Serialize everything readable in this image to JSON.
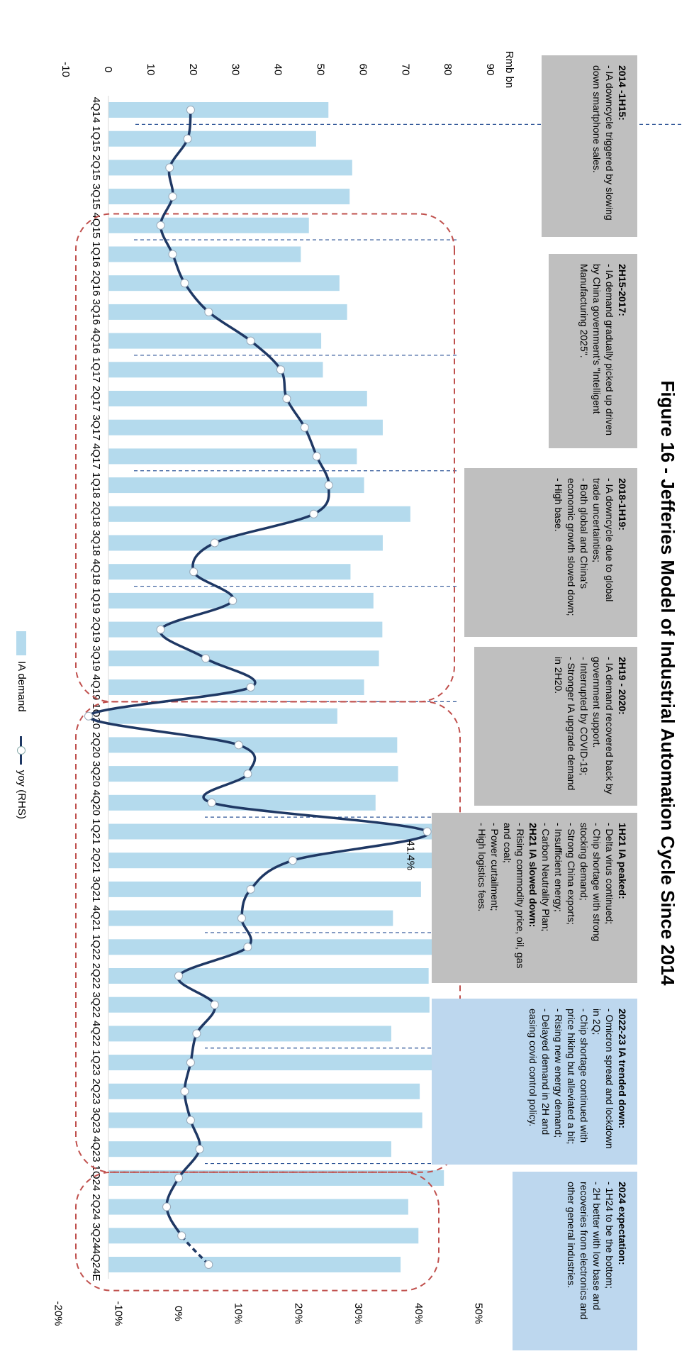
{
  "title": "Figure 16 - Jefferies Model of Industrial Automation Cycle Since 2014",
  "chart_data": {
    "type": "bar",
    "categories": [
      "4Q14",
      "1Q15",
      "2Q15",
      "3Q15",
      "4Q15",
      "1Q16",
      "2Q16",
      "3Q16",
      "4Q16",
      "1Q17",
      "2Q17",
      "3Q17",
      "4Q17",
      "1Q18",
      "2Q18",
      "3Q18",
      "4Q18",
      "1Q19",
      "2Q19",
      "3Q19",
      "4Q19",
      "1Q20",
      "2Q20",
      "3Q20",
      "4Q20",
      "1Q21",
      "2Q21",
      "3Q21",
      "4Q21",
      "1Q22",
      "2Q22",
      "3Q22",
      "4Q22",
      "1Q23",
      "2Q23",
      "3Q23",
      "4Q23",
      "1Q24",
      "2Q24",
      "3Q24",
      "4Q24E"
    ],
    "series": [
      {
        "name": "IA demand",
        "axis": "left",
        "values": [
          51.8,
          48.9,
          57.4,
          56.8,
          47.2,
          45.3,
          54.4,
          56.2,
          50.1,
          50.5,
          60.9,
          64.6,
          58.5,
          60.2,
          71.1,
          64.6,
          57.0,
          62.4,
          64.5,
          63.7,
          60.2,
          53.9,
          68.0,
          68.2,
          62.9,
          79.0,
          79.5,
          73.6,
          67.0,
          82.0,
          75.4,
          75.6,
          66.6,
          80.4,
          73.3,
          73.9,
          66.6,
          79.0,
          70.6,
          73.0,
          68.8
        ]
      },
      {
        "name": "yoy (RHS)",
        "axis": "right",
        "dashed_from": "3Q24",
        "values": [
          2.0,
          1.5,
          -1.5,
          -1.0,
          -3.0,
          -1.0,
          1.0,
          5.0,
          12.0,
          17.0,
          18.0,
          21.0,
          23.0,
          25.0,
          22.5,
          6.0,
          2.5,
          9.0,
          -3.0,
          4.5,
          12.0,
          -15.0,
          10.0,
          11.5,
          5.5,
          41.4,
          19.0,
          12.0,
          10.5,
          11.5,
          0.0,
          6.0,
          3.0,
          2.0,
          1.0,
          2.0,
          3.5,
          0.0,
          -2.0,
          0.5,
          5.0
        ]
      }
    ],
    "y_left": {
      "label": "Rmb bn",
      "ylim": [
        -10,
        90
      ],
      "ticks": [
        "-10",
        "0",
        "10",
        "20",
        "30",
        "40",
        "50",
        "60",
        "70",
        "80",
        "90"
      ]
    },
    "y_right": {
      "ylim": [
        -20,
        50
      ],
      "ticks": [
        "-20%",
        "-10%",
        "0%",
        "10%",
        "20%",
        "30%",
        "40%",
        "50%"
      ]
    },
    "annotations": [
      {
        "category": "1Q21",
        "label": "41.4%"
      }
    ],
    "legend": [
      "IA demand",
      "yoy (RHS)"
    ],
    "legend_position": "bottom",
    "grid": false
  },
  "colors": {
    "bar": "#b4daed",
    "line": "#1f3864",
    "cycle_border": "#c0504d",
    "divider": "#2f5597",
    "gray_box": "#bfbfbf",
    "blue_box": "#bdd7ee"
  },
  "boxes": [
    {
      "heading": "2014 -1H15:",
      "lines": [
        "- IA downcycle triggered by slowing down smartphone sales."
      ]
    },
    {
      "heading": "2H15-2017:",
      "lines": [
        "- IA demand gradually picked up driven by China government's \"Intelligent Manufacturing 2025\"."
      ]
    },
    {
      "heading": "2018-1H19:",
      "lines": [
        "- IA downcycle due to global trade uncertainties;",
        "- Both global and China's economic growth slowed down;",
        "- High base."
      ]
    },
    {
      "heading": "2H19 - 2020:",
      "lines": [
        "- IA demand recovered back by government support.",
        "- Interrupted by COVID-19;",
        "- Stronger IA upgrade demand in 2H20."
      ]
    },
    {
      "heading": "1H21 IA peaked:",
      "lines": [
        "- Delta virus continued;",
        "- Chip shortage with strong stocking demand;",
        "- Strong China exports;",
        "- Insufficient energy;",
        "- Carbon Neutrality Plan;",
        "2H21 IA slowed down:",
        "- Rising commodity price, oil, gas and coal;",
        "- Power curtailment;",
        "- High logistics fees."
      ]
    },
    {
      "heading": "2022-23 IA trended down:",
      "lines": [
        "- Omicron spread and lockdown in 2Q;",
        "- Chip shortage continued with price hiking but alleviated a bit;",
        "- Rising new energy demand;",
        "- Delayed demand in 2H and easing covid control policy."
      ]
    },
    {
      "heading": "2024 expectation:",
      "lines": [
        "- 1H24 to be the bottom;",
        "- 2H better with low base and recoveries from electronics and other general industries."
      ]
    }
  ]
}
